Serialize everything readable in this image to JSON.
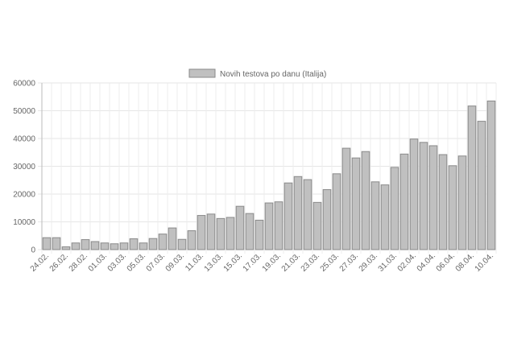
{
  "chart_data": {
    "type": "bar",
    "categories": [
      "24.02.",
      null,
      "26.02.",
      null,
      "28.02.",
      null,
      "01.03.",
      null,
      "03.03.",
      null,
      "05.03.",
      null,
      "07.03.",
      null,
      "09.03.",
      null,
      "11.03.",
      null,
      "13.03.",
      null,
      "15.03.",
      null,
      "17.03.",
      null,
      "19.03.",
      null,
      "21.03.",
      null,
      "23.03.",
      null,
      "25.03.",
      null,
      "27.03.",
      null,
      "29.03.",
      null,
      "31.03.",
      null,
      "02.04.",
      null,
      "04.04.",
      null,
      "06.04.",
      null,
      "08.04.",
      null,
      "10.04."
    ],
    "series": [
      {
        "name": "Novih testova po danu (Italija)",
        "color": "#c0c0c0",
        "values": [
          4300,
          4300,
          1000,
          2400,
          3600,
          2900,
          2400,
          2100,
          2400,
          3900,
          2400,
          4000,
          5600,
          7800,
          3700,
          6800,
          12300,
          12800,
          11200,
          11600,
          15600,
          13000,
          10600,
          16800,
          17200,
          24000,
          26300,
          25200,
          17000,
          21600,
          27300,
          36500,
          33000,
          35300,
          24400,
          23300,
          29600,
          34400,
          39800,
          38600,
          37400,
          34200,
          30200,
          33700,
          51700,
          46200,
          53500
        ]
      }
    ],
    "ylim": [
      0,
      60000
    ],
    "yticks": [
      0,
      10000,
      20000,
      30000,
      40000,
      50000,
      60000
    ],
    "grid": true,
    "legend": "top"
  }
}
